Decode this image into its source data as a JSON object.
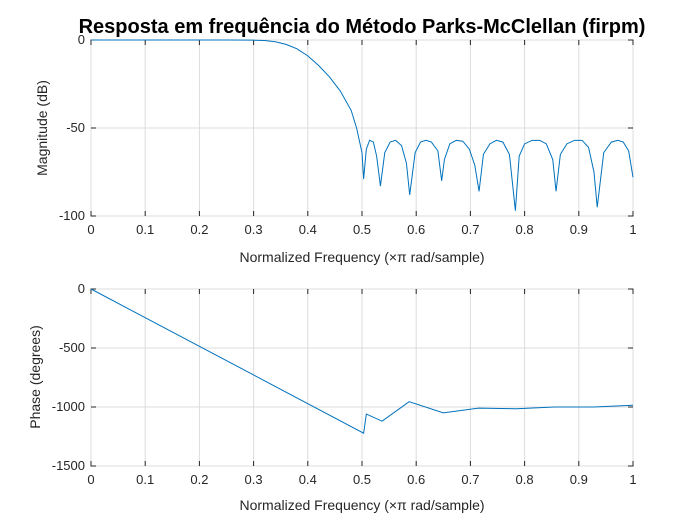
{
  "title": "Resposta em frequência do Método Parks-McClellan (firpm)",
  "chart_data": [
    {
      "type": "line",
      "xlabel": "Normalized Frequency  (×π rad/sample)",
      "ylabel": "Magnitude (dB)",
      "xlim": [
        0,
        1
      ],
      "ylim": [
        -100,
        0
      ],
      "xticks": [
        "0",
        "0.1",
        "0.2",
        "0.3",
        "0.4",
        "0.5",
        "0.6",
        "0.7",
        "0.8",
        "0.9",
        "1"
      ],
      "yticks": [
        "-100",
        "-50",
        "0"
      ],
      "grid": true,
      "color": "#0072bd",
      "series": [
        {
          "x": [
            0,
            0.1,
            0.2,
            0.25,
            0.3,
            0.32,
            0.34,
            0.36,
            0.38,
            0.4,
            0.42,
            0.44,
            0.46,
            0.48,
            0.49,
            0.5,
            0.503,
            0.508,
            0.514,
            0.521,
            0.527,
            0.534,
            0.542,
            0.552,
            0.562,
            0.573,
            0.582,
            0.588,
            0.598,
            0.608,
            0.618,
            0.628,
            0.64,
            0.647,
            0.652,
            0.662,
            0.674,
            0.686,
            0.698,
            0.708,
            0.716,
            0.724,
            0.736,
            0.748,
            0.76,
            0.772,
            0.783,
            0.79,
            0.8,
            0.814,
            0.828,
            0.84,
            0.852,
            0.858,
            0.866,
            0.878,
            0.892,
            0.906,
            0.918,
            0.928,
            0.934,
            0.946,
            0.96,
            0.972,
            0.982,
            0.992,
            1.0
          ],
          "y": [
            0,
            0,
            0,
            0,
            -0.1,
            -0.3,
            -1,
            -2.5,
            -5,
            -9,
            -14.5,
            -21,
            -29,
            -40,
            -50,
            -64,
            -79,
            -62,
            -57,
            -58,
            -66,
            -83,
            -64,
            -58,
            -57,
            -60,
            -70,
            -88,
            -64,
            -58,
            -57,
            -58,
            -63,
            -80,
            -68,
            -59,
            -57,
            -57.5,
            -62,
            -71,
            -86,
            -65,
            -59,
            -57,
            -58,
            -65,
            -97,
            -66,
            -59,
            -57,
            -57,
            -59,
            -68,
            -86,
            -65,
            -59,
            -57,
            -57,
            -61,
            -75,
            -95,
            -64,
            -58,
            -57,
            -58,
            -63,
            -78
          ]
        }
      ]
    },
    {
      "type": "line",
      "xlabel": "Normalized Frequency  (×π rad/sample)",
      "ylabel": "Phase (degrees)",
      "xlim": [
        0,
        1
      ],
      "ylim": [
        -1500,
        0
      ],
      "xticks": [
        "0",
        "0.1",
        "0.2",
        "0.3",
        "0.4",
        "0.5",
        "0.6",
        "0.7",
        "0.8",
        "0.9",
        "1"
      ],
      "yticks": [
        "-1500",
        "-1000",
        "-500",
        "0"
      ],
      "grid": true,
      "color": "#0072bd",
      "series": [
        {
          "x": [
            0,
            0.503,
            0.503,
            0.508,
            0.508,
            0.537,
            0.537,
            0.587,
            0.587,
            0.65,
            0.65,
            0.715,
            0.715,
            0.785,
            0.785,
            0.855,
            0.855,
            0.928,
            0.928,
            1.0
          ],
          "y": [
            0,
            -1222,
            -1222,
            -1060,
            -1060,
            -1120,
            -1120,
            -955,
            -955,
            -1050,
            -1050,
            -1010,
            -1010,
            -1015,
            -1015,
            -1000,
            -1000,
            -1000,
            -1000,
            -985
          ]
        }
      ]
    }
  ]
}
